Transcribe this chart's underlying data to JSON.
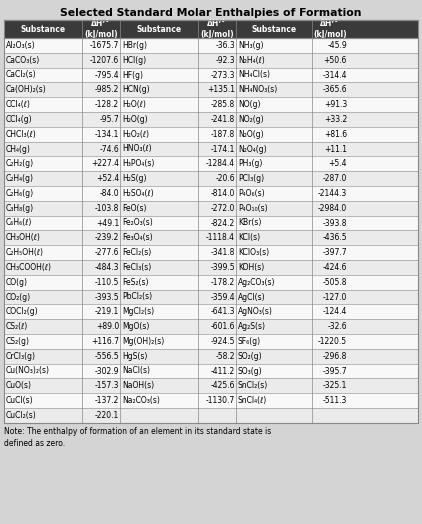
{
  "title": "Selected Standard Molar Enthalpies of Formation",
  "col1": [
    [
      "Al₂O₃(s)",
      "-1675.7"
    ],
    [
      "CaCO₃(s)",
      "-1207.6"
    ],
    [
      "CaCl₂(s)",
      "-795.4"
    ],
    [
      "Ca(OH)₂(s)",
      "-985.2"
    ],
    [
      "CCl₄(ℓ)",
      "-128.2"
    ],
    [
      "CCl₄(g)",
      "-95.7"
    ],
    [
      "CHCl₃(ℓ)",
      "-134.1"
    ],
    [
      "CH₄(g)",
      "-74.6"
    ],
    [
      "C₂H₂(g)",
      "+227.4"
    ],
    [
      "C₂H₄(g)",
      "+52.4"
    ],
    [
      "C₂H₆(g)",
      "-84.0"
    ],
    [
      "C₃H₈(g)",
      "-103.8"
    ],
    [
      "C₆H₆(ℓ)",
      "+49.1"
    ],
    [
      "CH₃OH(ℓ)",
      "-239.2"
    ],
    [
      "C₂H₅OH(ℓ)",
      "-277.6"
    ],
    [
      "CH₃COOH(ℓ)",
      "-484.3"
    ],
    [
      "CO(g)",
      "-110.5"
    ],
    [
      "CO₂(g)",
      "-393.5"
    ],
    [
      "COCl₂(g)",
      "-219.1"
    ],
    [
      "CS₂(ℓ)",
      "+89.0"
    ],
    [
      "CS₂(g)",
      "+116.7"
    ],
    [
      "CrCl₃(g)",
      "-556.5"
    ],
    [
      "Cu(NO₃)₂(s)",
      "-302.9"
    ],
    [
      "CuO(s)",
      "-157.3"
    ],
    [
      "CuCl(s)",
      "-137.2"
    ],
    [
      "CuCl₂(s)",
      "-220.1"
    ]
  ],
  "col2": [
    [
      "HBr(g)",
      "-36.3"
    ],
    [
      "HCl(g)",
      "-92.3"
    ],
    [
      "HF(g)",
      "-273.3"
    ],
    [
      "HCN(g)",
      "+135.1"
    ],
    [
      "H₂O(ℓ)",
      "-285.8"
    ],
    [
      "H₂O(g)",
      "-241.8"
    ],
    [
      "H₂O₂(ℓ)",
      "-187.8"
    ],
    [
      "HNO₃(ℓ)",
      "-174.1"
    ],
    [
      "H₃PO₄(s)",
      "-1284.4"
    ],
    [
      "H₂S(g)",
      "-20.6"
    ],
    [
      "H₂SO₄(ℓ)",
      "-814.0"
    ],
    [
      "FeO(s)",
      "-272.0"
    ],
    [
      "Fe₂O₃(s)",
      "-824.2"
    ],
    [
      "Fe₃O₄(s)",
      "-1118.4"
    ],
    [
      "FeCl₂(s)",
      "-341.8"
    ],
    [
      "FeCl₃(s)",
      "-399.5"
    ],
    [
      "FeS₂(s)",
      "-178.2"
    ],
    [
      "PbCl₂(s)",
      "-359.4"
    ],
    [
      "MgCl₂(s)",
      "-641.3"
    ],
    [
      "MgO(s)",
      "-601.6"
    ],
    [
      "Mg(OH)₂(s)",
      "-924.5"
    ],
    [
      "HgS(s)",
      "-58.2"
    ],
    [
      "NaCl(s)",
      "-411.2"
    ],
    [
      "NaOH(s)",
      "-425.6"
    ],
    [
      "Na₂CO₃(s)",
      "-1130.7"
    ],
    [
      "",
      ""
    ]
  ],
  "col3": [
    [
      "NH₃(g)",
      "-45.9"
    ],
    [
      "N₂H₄(ℓ)",
      "+50.6"
    ],
    [
      "NH₄Cl(s)",
      "-314.4"
    ],
    [
      "NH₄NO₃(s)",
      "-365.6"
    ],
    [
      "NO(g)",
      "+91.3"
    ],
    [
      "NO₂(g)",
      "+33.2"
    ],
    [
      "N₂O(g)",
      "+81.6"
    ],
    [
      "N₂O₄(g)",
      "+11.1"
    ],
    [
      "PH₃(g)",
      "+5.4"
    ],
    [
      "PCl₃(g)",
      "-287.0"
    ],
    [
      "P₄O₆(s)",
      "-2144.3"
    ],
    [
      "P₄O₁₀(s)",
      "-2984.0"
    ],
    [
      "KBr(s)",
      "-393.8"
    ],
    [
      "KCl(s)",
      "-436.5"
    ],
    [
      "KClO₃(s)",
      "-397.7"
    ],
    [
      "KOH(s)",
      "-424.6"
    ],
    [
      "Ag₂CO₃(s)",
      "-505.8"
    ],
    [
      "AgCl(s)",
      "-127.0"
    ],
    [
      "AgNO₃(s)",
      "-124.4"
    ],
    [
      "Ag₂S(s)",
      "-32.6"
    ],
    [
      "SF₆(g)",
      "-1220.5"
    ],
    [
      "SO₂(g)",
      "-296.8"
    ],
    [
      "SO₃(g)",
      "-395.7"
    ],
    [
      "SnCl₂(s)",
      "-325.1"
    ],
    [
      "SnCl₄(ℓ)",
      "-511.3"
    ],
    [
      "",
      ""
    ]
  ],
  "note": "Note: The enthalpy of formation of an element in its standard state is\ndefined as zero.",
  "header_bg": "#3a3a3a",
  "header_fg": "#ffffff",
  "row_bg_even": "#ebebeb",
  "row_bg_odd": "#f8f8f8",
  "border_color": "#888888",
  "title_fontsize": 7.8,
  "header_fontsize": 5.5,
  "cell_fontsize": 5.5,
  "note_fontsize": 5.5,
  "bg_color": "#d4d4d4"
}
